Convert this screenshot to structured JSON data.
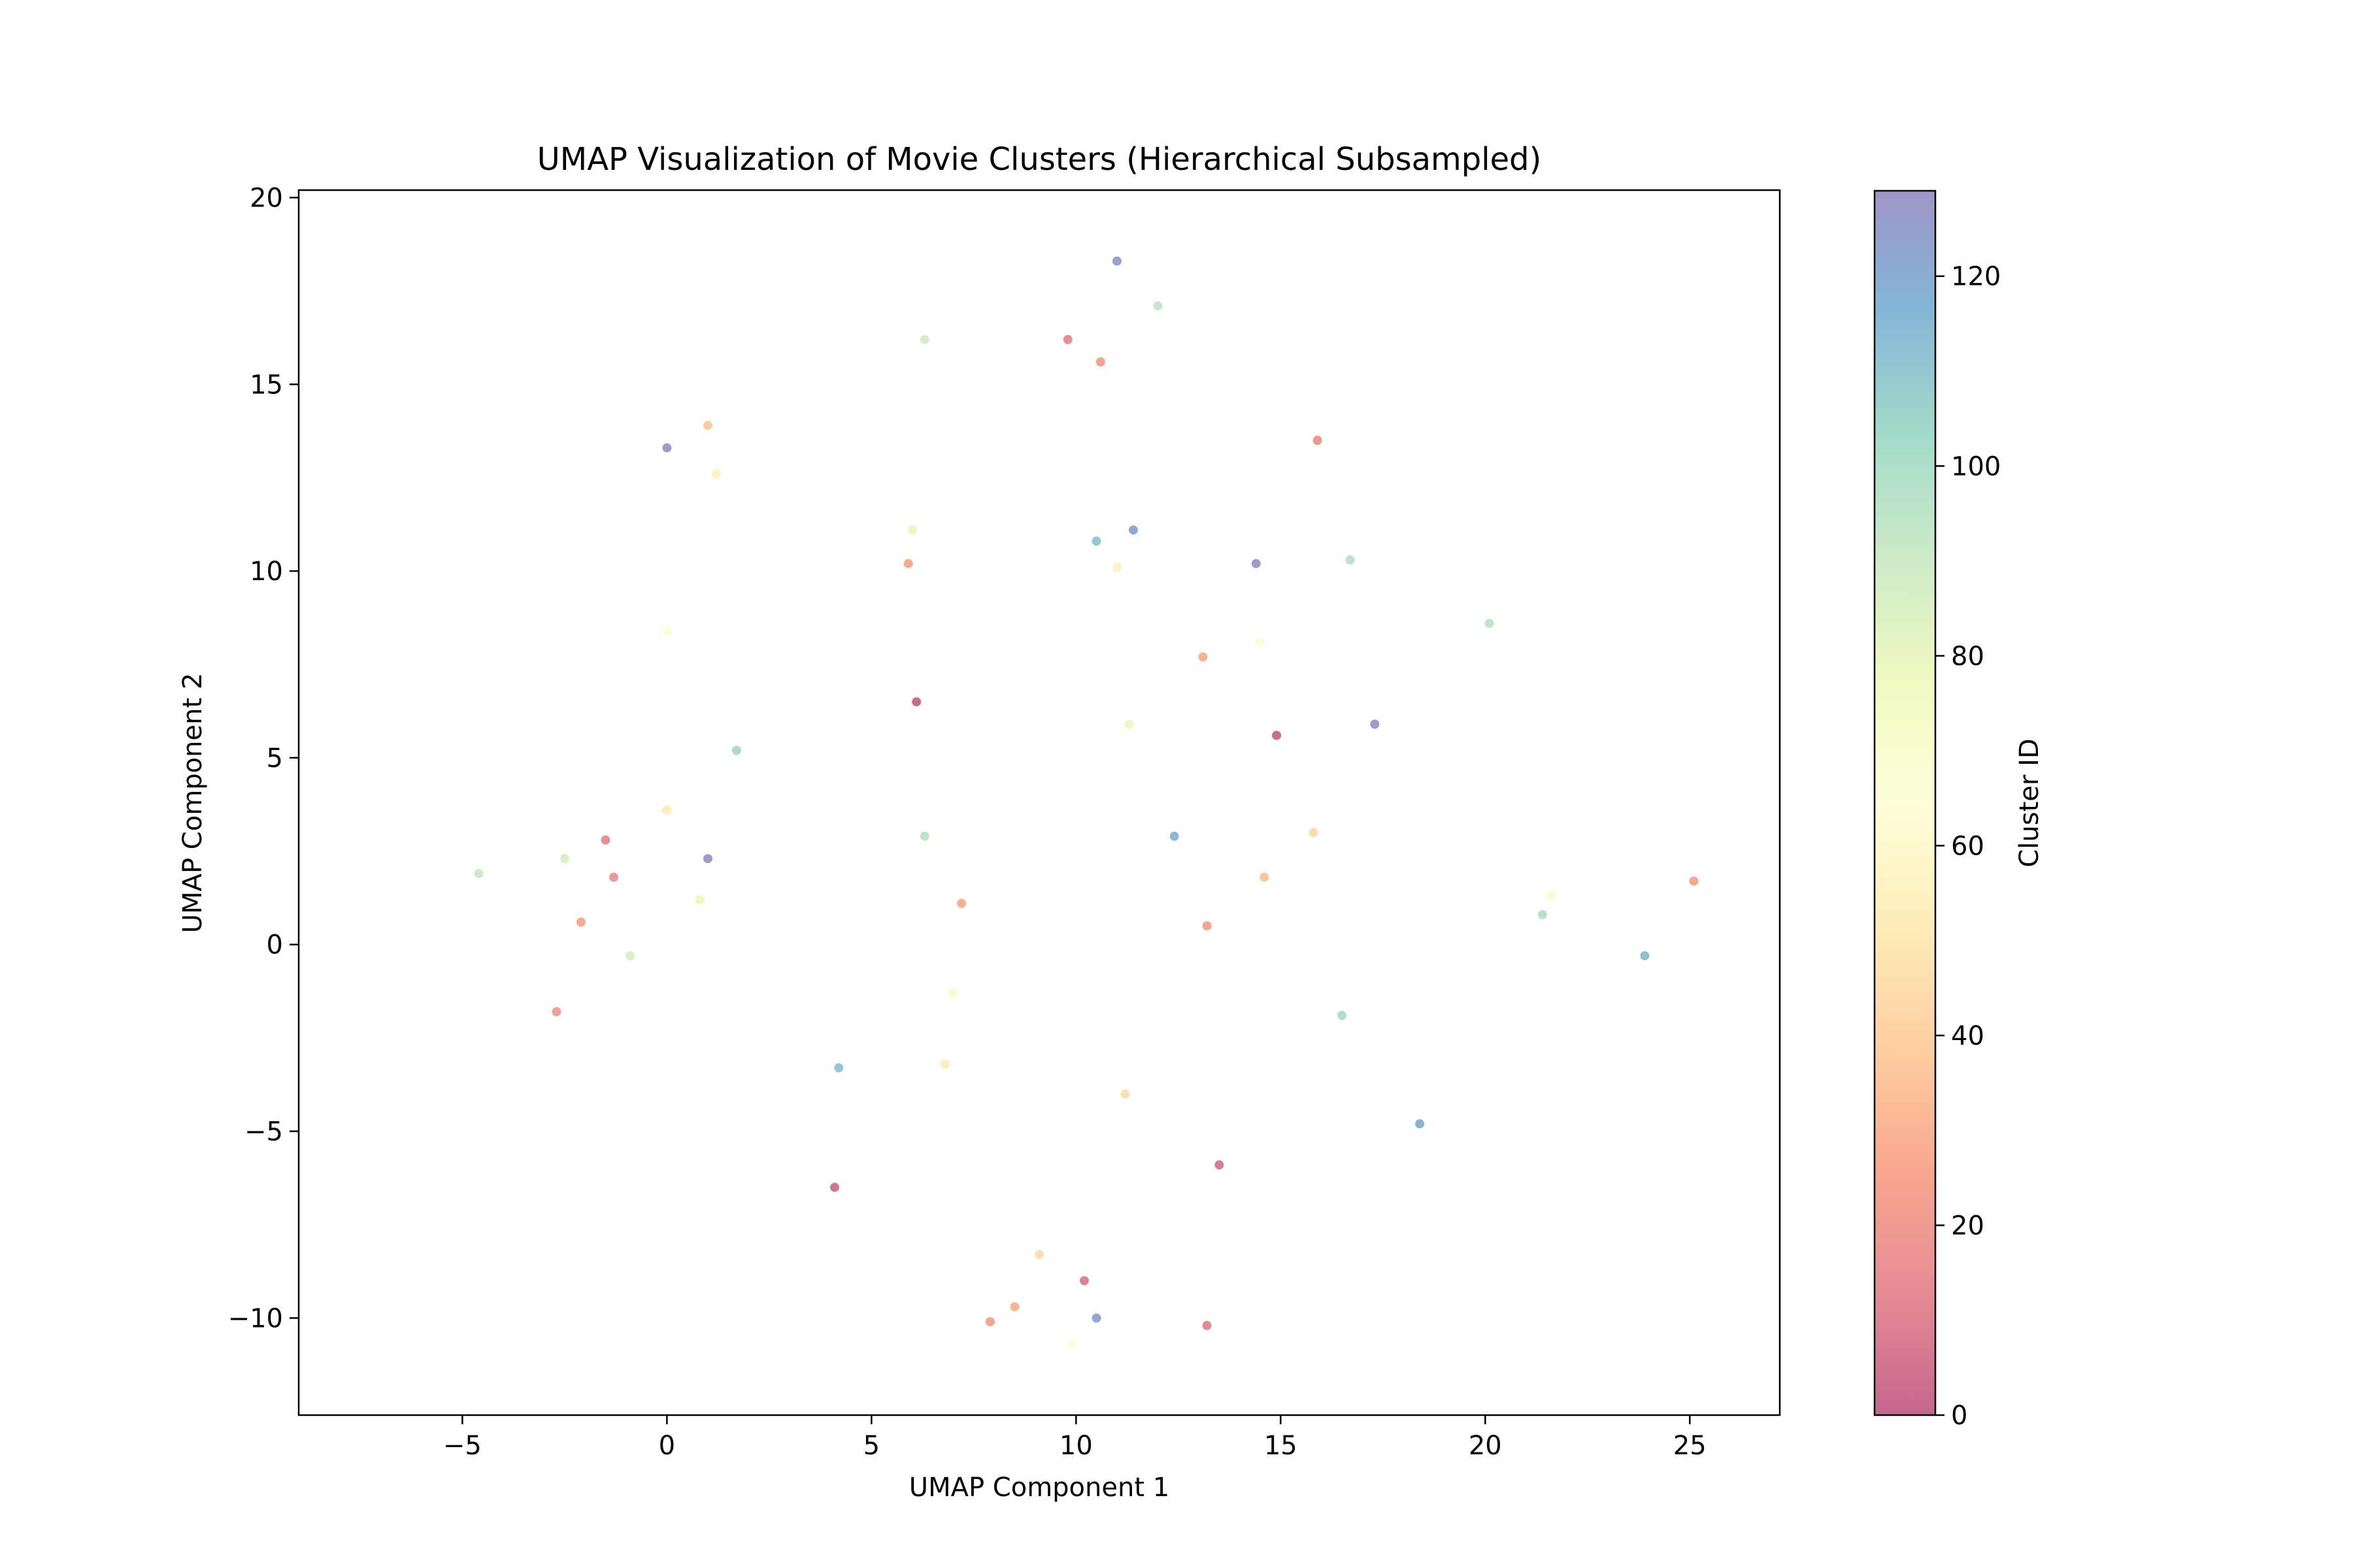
{
  "chart_data": {
    "type": "scatter",
    "title": "UMAP Visualization of Movie Clusters (Hierarchical Subsampled)",
    "xlabel": "UMAP Component 1",
    "ylabel": "UMAP Component 2",
    "xlim": [
      -9.0,
      27.2
    ],
    "ylim": [
      -12.6,
      20.2
    ],
    "x_ticks": [
      -5,
      0,
      5,
      10,
      15,
      20,
      25
    ],
    "x_tick_labels": [
      "−5",
      "0",
      "5",
      "10",
      "15",
      "20",
      "25"
    ],
    "y_ticks": [
      -10,
      -5,
      0,
      5,
      10,
      15,
      20
    ],
    "y_tick_labels": [
      "−10",
      "−5",
      "0",
      "5",
      "10",
      "15",
      "20"
    ],
    "grid": false,
    "colormap": "Spectral",
    "marker_alpha": 0.6,
    "colorbar": {
      "label": "Cluster ID",
      "range": [
        0,
        129
      ],
      "ticks": [
        0,
        20,
        40,
        60,
        80,
        100,
        120
      ],
      "tick_labels": [
        "0",
        "20",
        "40",
        "60",
        "80",
        "100",
        "120"
      ],
      "colors": [
        "#9e0142",
        "#d53e4f",
        "#f46d43",
        "#fdae61",
        "#fee08b",
        "#ffffbf",
        "#e6f598",
        "#abdda4",
        "#66c2a5",
        "#3288bd",
        "#5e4fa2"
      ]
    },
    "clusters": [
      {
        "x": 9.8,
        "y": 16.2,
        "cluster": 14
      },
      {
        "x": 10.6,
        "y": 15.6,
        "cluster": 24
      },
      {
        "x": 12.0,
        "y": 17.1,
        "cluster": 92
      },
      {
        "x": 11.0,
        "y": 18.3,
        "cluster": 124
      },
      {
        "x": 6.3,
        "y": 16.2,
        "cluster": 88
      },
      {
        "x": 1.0,
        "y": 13.9,
        "cluster": 38
      },
      {
        "x": 0.0,
        "y": 13.3,
        "cluster": 126
      },
      {
        "x": 1.2,
        "y": 12.6,
        "cluster": 55
      },
      {
        "x": 15.9,
        "y": 13.5,
        "cluster": 18
      },
      {
        "x": 6.0,
        "y": 11.1,
        "cluster": 80
      },
      {
        "x": 5.9,
        "y": 10.2,
        "cluster": 27
      },
      {
        "x": 10.5,
        "y": 10.8,
        "cluster": 110
      },
      {
        "x": 11.0,
        "y": 10.1,
        "cluster": 55
      },
      {
        "x": 11.4,
        "y": 11.1,
        "cluster": 122
      },
      {
        "x": 14.4,
        "y": 10.2,
        "cluster": 126
      },
      {
        "x": 16.7,
        "y": 10.3,
        "cluster": 96
      },
      {
        "x": 13.1,
        "y": 7.7,
        "cluster": 30
      },
      {
        "x": 14.5,
        "y": 8.1,
        "cluster": 68
      },
      {
        "x": 6.1,
        "y": 6.5,
        "cluster": 2
      },
      {
        "x": 14.9,
        "y": 5.6,
        "cluster": 2
      },
      {
        "x": 17.3,
        "y": 5.9,
        "cluster": 126
      },
      {
        "x": 11.3,
        "y": 5.9,
        "cluster": 78
      },
      {
        "x": 20.1,
        "y": 8.6,
        "cluster": 95
      },
      {
        "x": 1.7,
        "y": 5.2,
        "cluster": 102
      },
      {
        "x": 0.0,
        "y": 8.4,
        "cluster": 66
      },
      {
        "x": -1.5,
        "y": 2.8,
        "cluster": 14
      },
      {
        "x": -1.3,
        "y": 1.8,
        "cluster": 20
      },
      {
        "x": -2.5,
        "y": 2.3,
        "cluster": 85
      },
      {
        "x": -0.9,
        "y": -0.3,
        "cluster": 86
      },
      {
        "x": -2.1,
        "y": 0.6,
        "cluster": 26
      },
      {
        "x": 0.0,
        "y": 3.6,
        "cluster": 52
      },
      {
        "x": 1.0,
        "y": 2.3,
        "cluster": 126
      },
      {
        "x": 0.8,
        "y": 1.2,
        "cluster": 78
      },
      {
        "x": -4.6,
        "y": 1.9,
        "cluster": 90
      },
      {
        "x": -2.7,
        "y": -1.8,
        "cluster": 22
      },
      {
        "x": 6.3,
        "y": 2.9,
        "cluster": 95
      },
      {
        "x": 7.2,
        "y": 1.1,
        "cluster": 28
      },
      {
        "x": 13.2,
        "y": 0.5,
        "cluster": 24
      },
      {
        "x": 14.6,
        "y": 1.8,
        "cluster": 36
      },
      {
        "x": 12.4,
        "y": 2.9,
        "cluster": 115
      },
      {
        "x": 15.8,
        "y": 3.0,
        "cluster": 44
      },
      {
        "x": 16.5,
        "y": -1.9,
        "cluster": 100
      },
      {
        "x": 21.6,
        "y": 1.3,
        "cluster": 70
      },
      {
        "x": 21.4,
        "y": 0.8,
        "cluster": 97
      },
      {
        "x": 23.9,
        "y": -0.3,
        "cluster": 112
      },
      {
        "x": 25.1,
        "y": 1.7,
        "cluster": 26
      },
      {
        "x": 6.8,
        "y": -3.2,
        "cluster": 52
      },
      {
        "x": 7.0,
        "y": -1.3,
        "cluster": 72
      },
      {
        "x": 13.5,
        "y": -5.9,
        "cluster": 8
      },
      {
        "x": 18.4,
        "y": -4.8,
        "cluster": 118
      },
      {
        "x": 9.1,
        "y": -8.3,
        "cluster": 46
      },
      {
        "x": 10.2,
        "y": -9.0,
        "cluster": 10
      },
      {
        "x": 7.9,
        "y": -10.1,
        "cluster": 24
      },
      {
        "x": 9.9,
        "y": -10.7,
        "cluster": 64
      },
      {
        "x": 10.5,
        "y": -10.0,
        "cluster": 122
      },
      {
        "x": 8.5,
        "y": -9.7,
        "cluster": 30
      },
      {
        "x": 13.2,
        "y": -10.2,
        "cluster": 12
      },
      {
        "x": 11.2,
        "y": -4.0,
        "cluster": 46
      },
      {
        "x": 4.2,
        "y": -3.3,
        "cluster": 110
      },
      {
        "x": 4.1,
        "y": -6.5,
        "cluster": 5
      }
    ]
  }
}
